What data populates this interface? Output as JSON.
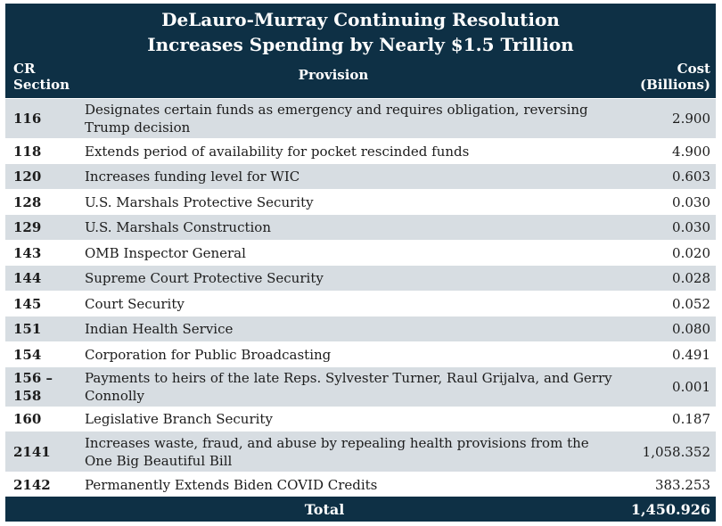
{
  "title": {
    "line1": "DeLauro-Murray Continuing Resolution",
    "line2": "Increases Spending by Nearly $1.5 Trillion"
  },
  "header": {
    "section_line1": "CR",
    "section_line2": "Section",
    "provision": "Provision",
    "cost_line1": "Cost",
    "cost_line2": "(Billions)"
  },
  "rows": [
    {
      "section": "116",
      "provision": "Designates certain funds as emergency and requires obligation, reversing Trump decision",
      "cost": "2.900"
    },
    {
      "section": "118",
      "provision": "Extends period of availability for pocket rescinded funds",
      "cost": "4.900"
    },
    {
      "section": "120",
      "provision": "Increases funding level for WIC",
      "cost": "0.603"
    },
    {
      "section": "128",
      "provision": "U.S. Marshals Protective Security",
      "cost": "0.030"
    },
    {
      "section": "129",
      "provision": "U.S. Marshals Construction",
      "cost": "0.030"
    },
    {
      "section": "143",
      "provision": "OMB Inspector General",
      "cost": "0.020"
    },
    {
      "section": "144",
      "provision": "Supreme Court Protective Security",
      "cost": "0.028"
    },
    {
      "section": "145",
      "provision": "Court Security",
      "cost": "0.052"
    },
    {
      "section": "151",
      "provision": "Indian Health Service",
      "cost": "0.080"
    },
    {
      "section": "154",
      "provision": "Corporation for Public Broadcasting",
      "cost": "0.491"
    },
    {
      "section": "156 – 158",
      "provision": "Payments to heirs of the late Reps. Sylvester Turner, Raul Grijalva, and Gerry Connolly",
      "cost": "0.001"
    },
    {
      "section": "160",
      "provision": "Legislative Branch Security",
      "cost": "0.187"
    },
    {
      "section": "2141",
      "provision": "Increases waste, fraud, and abuse by repealing health provisions from the One Big Beautiful Bill",
      "cost": "1,058.352"
    },
    {
      "section": "2142",
      "provision": "Permanently Extends Biden COVID Credits",
      "cost": "383.253"
    }
  ],
  "total": {
    "label": "Total",
    "cost": "1,450.926"
  },
  "colors": {
    "header_bg": "#0e3045",
    "shaded_row": "#d7dde2",
    "plain_row": "#ffffff"
  }
}
